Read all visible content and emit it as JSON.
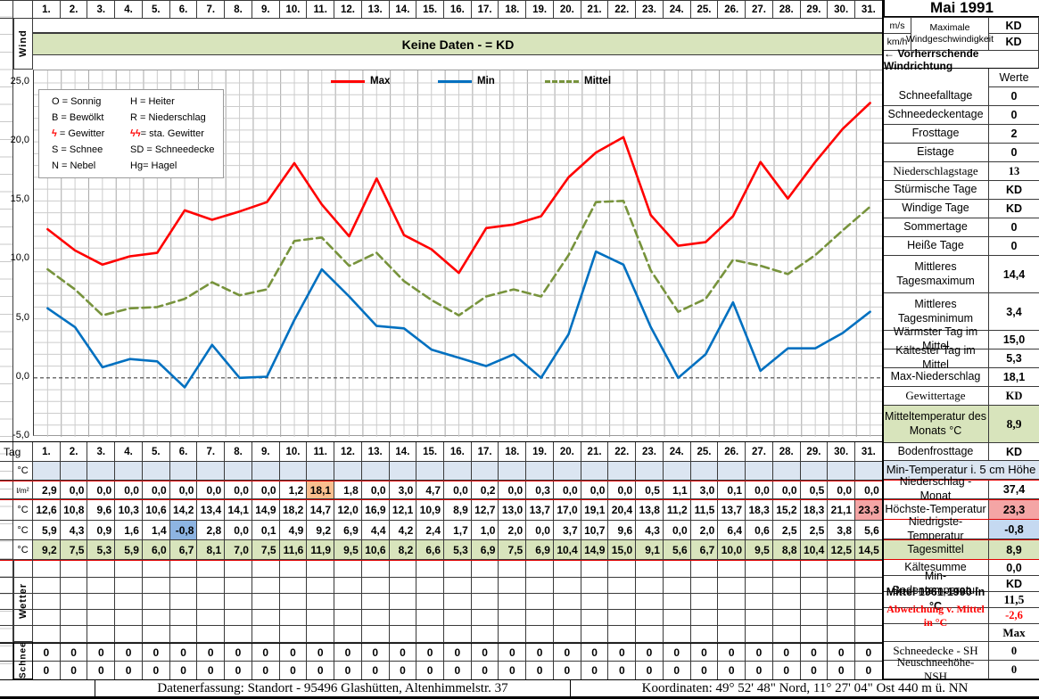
{
  "title": "Mai 1991",
  "days": [
    "1.",
    "2.",
    "3.",
    "4.",
    "5.",
    "6.",
    "7.",
    "8.",
    "9.",
    "10.",
    "11.",
    "12.",
    "13.",
    "14.",
    "15.",
    "16.",
    "17.",
    "18.",
    "19.",
    "20.",
    "21.",
    "22.",
    "23.",
    "24.",
    "25.",
    "26.",
    "27.",
    "28.",
    "29.",
    "30.",
    "31."
  ],
  "wind": {
    "row_label": "Wind",
    "banner": "Keine Daten -  = KD",
    "unit_ms": "m/s",
    "unit_kmh": "km/h",
    "max_label_1": "Maximale",
    "max_label_2": "Windgeschwindigkeit",
    "max_ms": "KD",
    "max_kmh": "KD",
    "direction_label": "←  Vorherrschende Windrichtung"
  },
  "werte_header": "Werte",
  "chart_data": {
    "type": "line",
    "x": [
      1,
      2,
      3,
      4,
      5,
      6,
      7,
      8,
      9,
      10,
      11,
      12,
      13,
      14,
      15,
      16,
      17,
      18,
      19,
      20,
      21,
      22,
      23,
      24,
      25,
      26,
      27,
      28,
      29,
      30,
      31
    ],
    "xlabel": "Tag",
    "ylabel": "°C",
    "ylim": [
      -5,
      25
    ],
    "ytick_step": 5,
    "ytick_labels": [
      "25,0",
      "20,0",
      "15,0",
      "10,0",
      "5,0",
      "0,0",
      "-5,0"
    ],
    "grid": true,
    "legend_position": "top-center",
    "series": [
      {
        "name": "Max",
        "color": "#ff0000",
        "style": "solid",
        "values": [
          12.6,
          10.8,
          9.6,
          10.3,
          10.6,
          14.2,
          13.4,
          14.1,
          14.9,
          18.2,
          14.7,
          12.0,
          16.9,
          12.1,
          10.9,
          8.9,
          12.7,
          13.0,
          13.7,
          17.0,
          19.1,
          20.4,
          13.8,
          11.2,
          11.5,
          13.7,
          18.3,
          15.2,
          18.3,
          21.1,
          23.3
        ]
      },
      {
        "name": "Min",
        "color": "#0070c0",
        "style": "solid",
        "values": [
          5.9,
          4.3,
          0.9,
          1.6,
          1.4,
          -0.8,
          2.8,
          0.0,
          0.1,
          4.9,
          9.2,
          6.9,
          4.4,
          4.2,
          2.4,
          1.7,
          1.0,
          2.0,
          0.0,
          3.7,
          10.7,
          9.6,
          4.3,
          0.0,
          2.0,
          6.4,
          0.6,
          2.5,
          2.5,
          3.8,
          5.6
        ]
      },
      {
        "name": "Mittel",
        "color": "#77933c",
        "style": "dashed",
        "values": [
          9.2,
          7.5,
          5.3,
          5.9,
          6.0,
          6.7,
          8.1,
          7.0,
          7.5,
          11.6,
          11.9,
          9.5,
          10.6,
          8.2,
          6.6,
          5.3,
          6.9,
          7.5,
          6.9,
          10.4,
          14.9,
          15.0,
          9.1,
          5.6,
          6.7,
          10.0,
          9.5,
          8.8,
          10.4,
          12.5,
          14.5
        ]
      }
    ]
  },
  "symbol_legend": [
    {
      "lk": "O",
      "ls": " = ",
      "lv": "Sonnig",
      "rk": "H",
      "rs": " = ",
      "rv": "Heiter",
      "red": false
    },
    {
      "lk": "B",
      "ls": " = ",
      "lv": "Bewölkt",
      "rk": "R",
      "rs": " = ",
      "rv": "Niederschlag",
      "red": false
    },
    {
      "lk": "ϟ",
      "ls": " = ",
      "lv": "Gewitter",
      "rk": "ϟϟ",
      "rs": "= ",
      "rv": "sta. Gewitter",
      "red": true
    },
    {
      "lk": "S",
      "ls": " = ",
      "lv": "Schnee",
      "rk": "SD",
      "rs": " = ",
      "rv": "Schneedecke",
      "red": false
    },
    {
      "lk": "N",
      "ls": " = ",
      "lv": "Nebel",
      "rk": "Hg",
      "rs": "= ",
      "rv": "Hagel",
      "red": false
    }
  ],
  "table": {
    "tag_label": "Tag",
    "rows": [
      {
        "id": "min5cm",
        "unit": "°C",
        "cls": "blue",
        "values": [
          "",
          "",
          "",
          "",
          "",
          "",
          "",
          "",
          "",
          "",
          "",
          "",
          "",
          "",
          "",
          "",
          "",
          "",
          "",
          "",
          "",
          "",
          "",
          "",
          "",
          "",
          "",
          "",
          "",
          "",
          ""
        ],
        "hl": {}
      },
      {
        "id": "niederschlag",
        "unit": "l/m²",
        "cls": "",
        "redtop": true,
        "redbottom": true,
        "values": [
          "2,9",
          "0,0",
          "0,0",
          "0,0",
          "0,0",
          "0,0",
          "0,0",
          "0,0",
          "0,0",
          "1,2",
          "18,1",
          "1,8",
          "0,0",
          "3,0",
          "4,7",
          "0,0",
          "0,2",
          "0,0",
          "0,3",
          "0,0",
          "0,0",
          "0,0",
          "0,5",
          "1,1",
          "3,0",
          "0,1",
          "0,0",
          "0,0",
          "0,5",
          "0,0",
          "0,0"
        ],
        "hl": {
          "10": "hl-orange"
        }
      },
      {
        "id": "tmax",
        "unit": "°C",
        "cls": "",
        "values": [
          "12,6",
          "10,8",
          "9,6",
          "10,3",
          "10,6",
          "14,2",
          "13,4",
          "14,1",
          "14,9",
          "18,2",
          "14,7",
          "12,0",
          "16,9",
          "12,1",
          "10,9",
          "8,9",
          "12,7",
          "13,0",
          "13,7",
          "17,0",
          "19,1",
          "20,4",
          "13,8",
          "11,2",
          "11,5",
          "13,7",
          "18,3",
          "15,2",
          "18,3",
          "21,1",
          "23,3"
        ],
        "hl": {
          "30": "hl-pink"
        }
      },
      {
        "id": "tmin",
        "unit": "°C",
        "cls": "",
        "values": [
          "5,9",
          "4,3",
          "0,9",
          "1,6",
          "1,4",
          "-0,8",
          "2,8",
          "0,0",
          "0,1",
          "4,9",
          "9,2",
          "6,9",
          "4,4",
          "4,2",
          "2,4",
          "1,7",
          "1,0",
          "2,0",
          "0,0",
          "3,7",
          "10,7",
          "9,6",
          "4,3",
          "0,0",
          "2,0",
          "6,4",
          "0,6",
          "2,5",
          "2,5",
          "3,8",
          "5,6"
        ],
        "hl": {
          "5": "hl-blue"
        }
      },
      {
        "id": "tagesmittel",
        "unit": "°C",
        "cls": "green",
        "redbottom": true,
        "values": [
          "9,2",
          "7,5",
          "5,3",
          "5,9",
          "6,0",
          "6,7",
          "8,1",
          "7,0",
          "7,5",
          "11,6",
          "11,9",
          "9,5",
          "10,6",
          "8,2",
          "6,6",
          "5,3",
          "6,9",
          "7,5",
          "6,9",
          "10,4",
          "14,9",
          "15,0",
          "9,1",
          "5,6",
          "6,7",
          "10,0",
          "9,5",
          "8,8",
          "10,4",
          "12,5",
          "14,5"
        ],
        "hl": {}
      }
    ],
    "wetter_label": "Wetter",
    "empty_weather_rows": 5,
    "schnee_label": "Schnee",
    "schnee_rows": [
      [
        "0",
        "0",
        "0",
        "0",
        "0",
        "0",
        "0",
        "0",
        "0",
        "0",
        "0",
        "0",
        "0",
        "0",
        "0",
        "0",
        "0",
        "0",
        "0",
        "0",
        "0",
        "0",
        "0",
        "0",
        "0",
        "0",
        "0",
        "0",
        "0",
        "0",
        "0"
      ],
      [
        "0",
        "0",
        "0",
        "0",
        "0",
        "0",
        "0",
        "0",
        "0",
        "0",
        "0",
        "0",
        "0",
        "0",
        "0",
        "0",
        "0",
        "0",
        "0",
        "0",
        "0",
        "0",
        "0",
        "0",
        "0",
        "0",
        "0",
        "0",
        "0",
        "0",
        "0"
      ]
    ]
  },
  "sidebar": [
    {
      "label": "Schneefalltage",
      "value": "0"
    },
    {
      "label": "Schneedeckentage",
      "value": "0"
    },
    {
      "label": "Frosttage",
      "value": "2"
    },
    {
      "label": "Eistage",
      "value": "0"
    },
    {
      "label": "Niederschlagstage",
      "value": "13",
      "serif": true
    },
    {
      "label": "Stürmische Tage",
      "value": "KD"
    },
    {
      "label": "Windige Tage",
      "value": "KD"
    },
    {
      "label": "Sommertage",
      "value": "0"
    },
    {
      "label": "Heiße Tage",
      "value": "0"
    },
    {
      "label": "Mittleres Tagesmaximum",
      "value": "14,4"
    },
    {
      "label": "Mittleres Tagesminimum",
      "value": "3,4"
    },
    {
      "label": "Wärmster Tag im Mittel",
      "value": "15,0"
    },
    {
      "label": "Kältester Tag im Mittel",
      "value": "5,3"
    },
    {
      "label": "Max-Niederschlag",
      "value": "18,1"
    },
    {
      "label": "Gewittertage",
      "value": "KD",
      "serif": true
    },
    {
      "label": "Mitteltemperatur des Monats °C",
      "value": "8,9",
      "green": true,
      "serifval": true
    },
    {
      "label": "Bodenfrosttage",
      "value": "KD"
    },
    {
      "label": "Min-Temperatur i. 5 cm Höhe",
      "value": "",
      "fullblue": true
    },
    {
      "label": "Niederschlag - Monat",
      "value": "37,4",
      "redtop": true
    },
    {
      "label": "Höchste-Temperatur",
      "value": "23,3",
      "valbg": "hl-pink",
      "redtop": true,
      "redbottom": true
    },
    {
      "label": "Niedrigste-Temperatur",
      "value": "-0,8",
      "valbg": "hl-lblue"
    },
    {
      "label": "Tagesmittel",
      "value": "8,9",
      "green": true,
      "redtop": true,
      "redbottom": true
    },
    {
      "label": "Kältesumme",
      "value": "0,0"
    },
    {
      "label": "Min-Bodentemperatur",
      "value": "KD"
    },
    {
      "label": "Mittel 1961-1990 in °C",
      "value": "11,5",
      "boldlabel": true,
      "serifval": true
    },
    {
      "label": "Abweichung v. Mittel in °C",
      "value": "-2,6",
      "redtext": true,
      "serif": true
    },
    {
      "label": "",
      "value": "Max",
      "maxhdr": true
    },
    {
      "label": "Schneedecke -   SH",
      "value": "0",
      "serif": true
    },
    {
      "label": "Neuschneehöhe- NSH",
      "value": "0",
      "serif": true
    }
  ],
  "footer": {
    "left": "Datenerfassung:  Standort -  95496  Glashütten, Altenhimmelstr. 37",
    "right": "Koordinaten:  49° 52' 48\" Nord,   11° 27' 04\" Ost   440 m ü. NN"
  }
}
